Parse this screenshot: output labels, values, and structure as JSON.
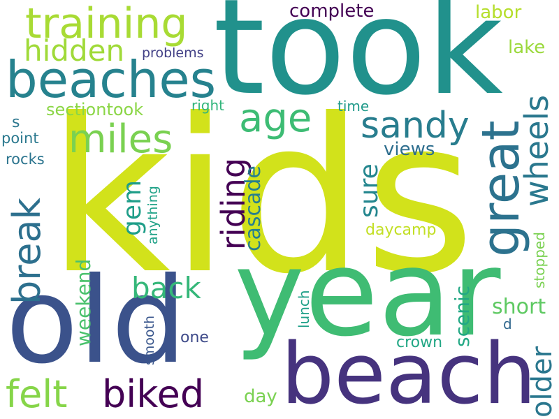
{
  "words": [
    {
      "text": "kids",
      "color": "#d2e21b",
      "rotate": false
    },
    {
      "text": "took",
      "color": "#21918c",
      "rotate": false
    },
    {
      "text": "year",
      "color": "#3fbc73",
      "rotate": false
    },
    {
      "text": "old",
      "color": "#3b528b",
      "rotate": false
    },
    {
      "text": "beach",
      "color": "#46337e",
      "rotate": false
    },
    {
      "text": "beaches",
      "color": "#26828e",
      "rotate": false
    },
    {
      "text": "training",
      "color": "#a8db34",
      "rotate": false
    },
    {
      "text": "great",
      "color": "#2c728e",
      "rotate": true
    },
    {
      "text": "miles",
      "color": "#7ad151",
      "rotate": false
    },
    {
      "text": "age",
      "color": "#3dbc74",
      "rotate": false
    },
    {
      "text": "sandy",
      "color": "#287d8e",
      "rotate": false
    },
    {
      "text": "hidden",
      "color": "#a0da39",
      "rotate": false
    },
    {
      "text": "wheels",
      "color": "#2a788e",
      "rotate": true
    },
    {
      "text": "break",
      "color": "#2d708e",
      "rotate": true
    },
    {
      "text": "biked",
      "color": "#440154",
      "rotate": false
    },
    {
      "text": "felt",
      "color": "#86d549",
      "rotate": false
    },
    {
      "text": "riding",
      "color": "#440154",
      "rotate": true
    },
    {
      "text": "older",
      "color": "#2a778e",
      "rotate": true
    },
    {
      "text": "back",
      "color": "#35b779",
      "rotate": false
    },
    {
      "text": "gem",
      "color": "#1f9e89",
      "rotate": true
    },
    {
      "text": "sure",
      "color": "#24868e",
      "rotate": true
    },
    {
      "text": "complete",
      "color": "#440154",
      "rotate": false
    },
    {
      "text": "labor",
      "color": "#b5de2b",
      "rotate": false
    },
    {
      "text": "lake",
      "color": "#9bd93c",
      "rotate": false
    },
    {
      "text": "sectiontook",
      "color": "#8bd646",
      "rotate": false
    },
    {
      "text": "problems",
      "color": "#424086",
      "rotate": false
    },
    {
      "text": "cascade",
      "color": "#277f8e",
      "rotate": true
    },
    {
      "text": "views",
      "color": "#2e6e8e",
      "rotate": false
    },
    {
      "text": "weekend",
      "color": "#4ac16d",
      "rotate": true
    },
    {
      "text": "scenic",
      "color": "#22a884",
      "rotate": true
    },
    {
      "text": "short",
      "color": "#5ec962",
      "rotate": false
    },
    {
      "text": "daycamp",
      "color": "#c2df23",
      "rotate": false
    },
    {
      "text": "stopped",
      "color": "#7ad151",
      "rotate": true
    },
    {
      "text": "anything",
      "color": "#1fa187",
      "rotate": true
    },
    {
      "text": "lunch",
      "color": "#1fa088",
      "rotate": true
    },
    {
      "text": "smooth",
      "color": "#39568c",
      "rotate": true
    },
    {
      "text": "day",
      "color": "#7ad151",
      "rotate": false
    },
    {
      "text": "one",
      "color": "#3e4a89",
      "rotate": false
    },
    {
      "text": "crown",
      "color": "#22a785",
      "rotate": false
    },
    {
      "text": "time",
      "color": "#1f9a8a",
      "rotate": false
    },
    {
      "text": "right",
      "color": "#31b57b",
      "rotate": false
    },
    {
      "text": "point",
      "color": "#2a788e",
      "rotate": false
    },
    {
      "text": "rocks",
      "color": "#2b748e",
      "rotate": false
    },
    {
      "text": "s",
      "color": "#2a768e",
      "rotate": false
    },
    {
      "text": "d",
      "color": "#31688e",
      "rotate": false
    }
  ]
}
